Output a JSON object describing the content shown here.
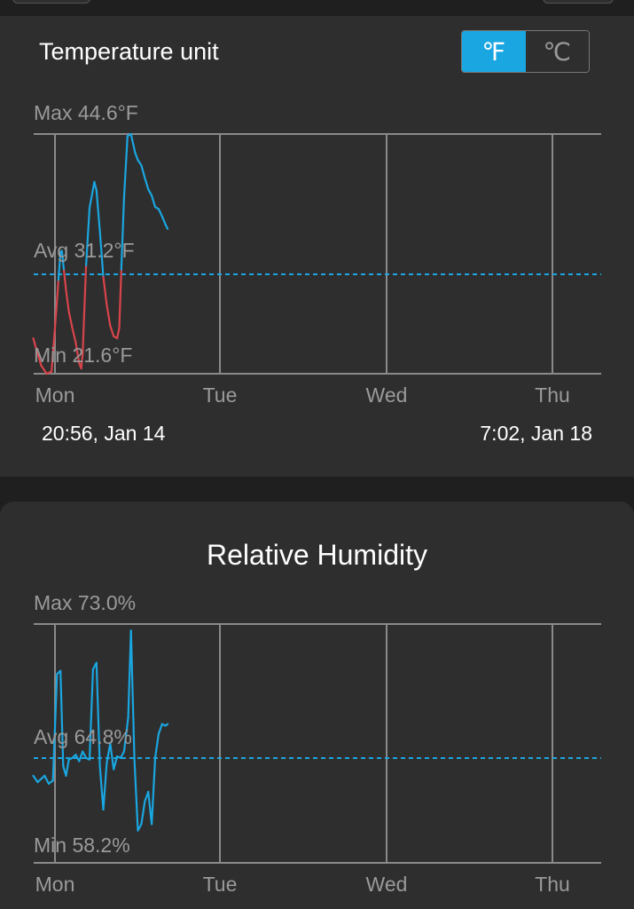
{
  "temperature": {
    "title": "Temperature unit",
    "unit_options": [
      {
        "label": "℉",
        "active": true
      },
      {
        "label": "℃",
        "active": false
      }
    ],
    "max_label": "Max 44.6°F",
    "avg_label": "Avg 31.2°F",
    "min_label": "Min 21.6°F",
    "days": [
      "Mon",
      "Tue",
      "Wed",
      "Thu"
    ],
    "start_time": "20:56, Jan 14",
    "end_time": "7:02, Jan 18"
  },
  "humidity": {
    "title": "Relative Humidity",
    "max_label": "Max 73.0%",
    "avg_label": "Avg 64.8%",
    "min_label": "Min 58.2%",
    "days": [
      "Mon",
      "Tue",
      "Wed",
      "Thu"
    ]
  },
  "chart_data": [
    {
      "type": "line",
      "title": "",
      "unit": "°F",
      "max": 44.6,
      "avg": 31.2,
      "min": 21.6,
      "x_ticks": [
        "Mon",
        "Tue",
        "Wed",
        "Thu"
      ],
      "x": [
        -3.14,
        -2.5,
        -2.0,
        -1.2,
        -0.5,
        0.2,
        0.5,
        0.8,
        1.0,
        1.3,
        1.6,
        2.0,
        2.5,
        3.0,
        3.5,
        3.8,
        4.0,
        4.5,
        5.0,
        5.7,
        6.0,
        6.5,
        7.0,
        7.5,
        8.0,
        8.5,
        9.0,
        9.3,
        9.6,
        10.0,
        10.5,
        11.0,
        11.6,
        12.0,
        12.5,
        13.0,
        13.5,
        14.0,
        14.5,
        15.0,
        15.5,
        16.0,
        16.3
      ],
      "series": [
        {
          "values": [
            25.0,
            23.5,
            22.4,
            21.6,
            21.8,
            27.8,
            30.6,
            33.2,
            33.4,
            31.5,
            29.6,
            27.6,
            26.0,
            24.6,
            22.6,
            22.1,
            23.5,
            32.0,
            37.5,
            40.0,
            39.2,
            35.3,
            30.9,
            28.2,
            26.2,
            25.2,
            25.0,
            26.0,
            31.6,
            38.5,
            44.4,
            44.6,
            42.8,
            42.1,
            41.6,
            40.4,
            39.3,
            38.7,
            37.6,
            37.4,
            36.7,
            35.9,
            35.5
          ]
        }
      ]
    },
    {
      "type": "line",
      "title": "Relative Humidity",
      "unit": "%",
      "max": 73.0,
      "avg": 64.8,
      "min": 58.2,
      "x_ticks": [
        "Mon",
        "Tue",
        "Wed",
        "Thu"
      ],
      "x": [
        -3.14,
        -2.5,
        -2.0,
        -1.5,
        -0.9,
        -0.3,
        0.3,
        0.8,
        1.2,
        1.6,
        2.0,
        2.5,
        3.0,
        3.5,
        4.0,
        4.5,
        5.0,
        5.5,
        6.0,
        6.5,
        7.0,
        7.5,
        8.0,
        8.5,
        9.0,
        9.5,
        10.0,
        10.6,
        11.0,
        11.5,
        12.0,
        12.5,
        13.0,
        13.5,
        14.0,
        14.5,
        15.0,
        15.5,
        16.0,
        16.3
      ],
      "series": [
        {
          "values": [
            63.6,
            63.2,
            63.4,
            63.6,
            63.1,
            63.3,
            69.9,
            70.1,
            64.2,
            63.6,
            64.6,
            64.7,
            64.9,
            64.5,
            65.1,
            64.7,
            64.6,
            70.2,
            70.6,
            64.2,
            61.5,
            64.4,
            65.6,
            64.0,
            64.8,
            64.7,
            65.1,
            67.2,
            72.6,
            64.6,
            60.2,
            60.6,
            62.0,
            62.6,
            60.6,
            64.7,
            66.2,
            66.8,
            66.7,
            66.8
          ]
        }
      ]
    }
  ]
}
